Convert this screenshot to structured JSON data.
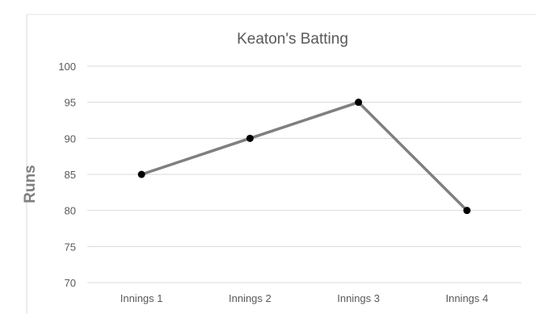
{
  "chart_data": {
    "type": "line",
    "title": "Keaton's Batting",
    "xlabel": "",
    "ylabel": "Runs",
    "categories": [
      "Innings 1",
      "Innings 2",
      "Innings 3",
      "Innings 4"
    ],
    "series": [
      {
        "values": [
          85,
          90,
          95,
          80
        ]
      }
    ],
    "ylim": [
      70,
      100
    ],
    "yticks": [
      "70",
      "75",
      "80",
      "85",
      "90",
      "95",
      "100"
    ],
    "grid": true,
    "legend": "none",
    "colors": {
      "line": "#7f7f7f",
      "marker": "#000000",
      "grid": "#d9d9d9"
    }
  }
}
